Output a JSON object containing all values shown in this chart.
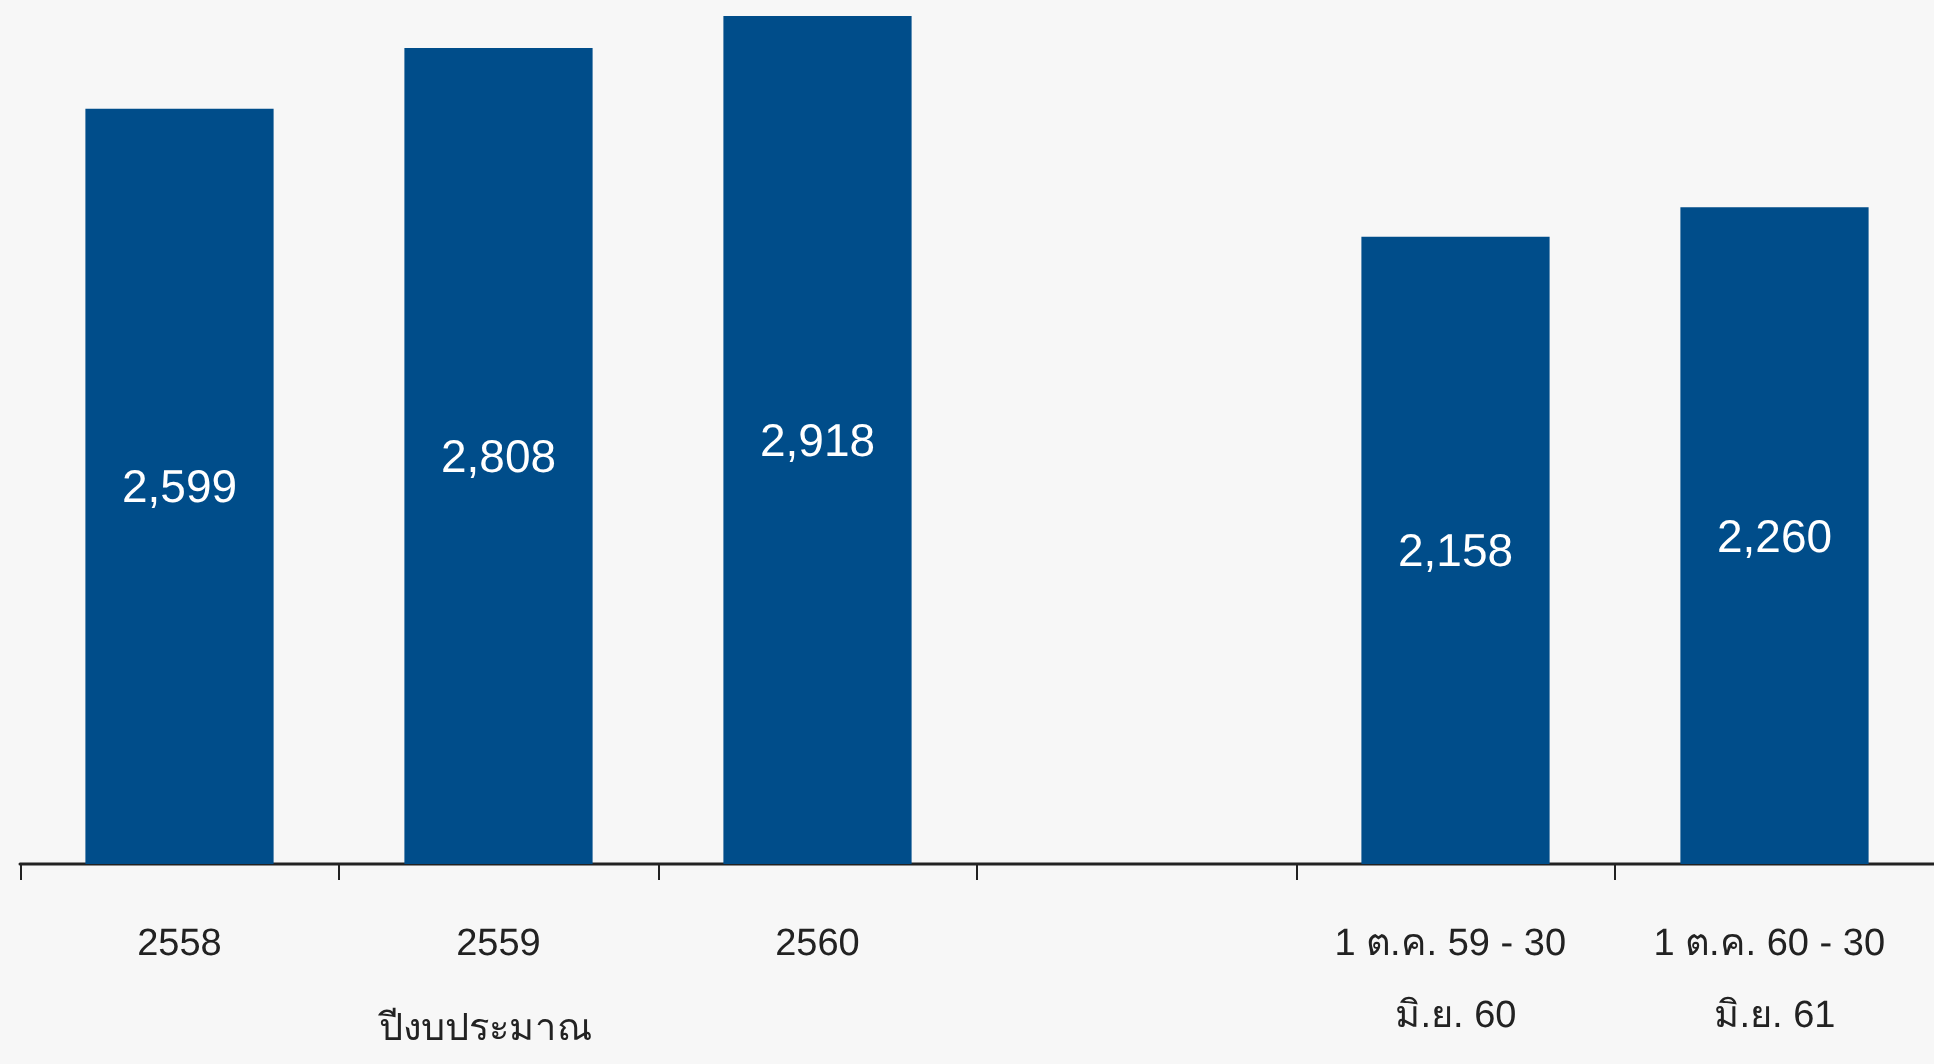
{
  "chart_data": {
    "type": "bar",
    "xlabel": "ปีงบประมาณ",
    "categories": [
      "2558",
      "2559",
      "2560",
      null,
      "1 ต.ค. 59 - 30 มิ.ย. 60",
      "1 ต.ค. 60 - 30 มิ.ย. 61"
    ],
    "values": [
      2599,
      2808,
      2918,
      null,
      2158,
      2260
    ],
    "color": "#004d8a",
    "value_labels": [
      "2,599",
      "2,808",
      "2,918",
      null,
      "2,158",
      "2,260"
    ]
  }
}
